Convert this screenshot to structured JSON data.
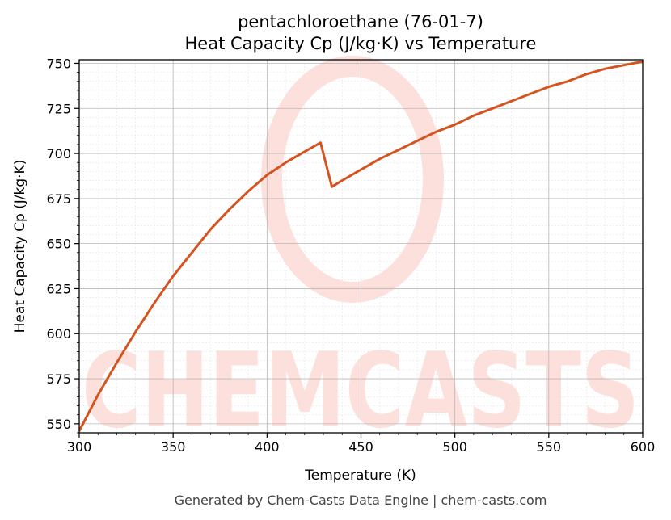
{
  "chart_data": {
    "type": "line",
    "title": "pentachloroethane (76-01-7)",
    "subtitle": "Heat Capacity Cp (J/kg·K) vs Temperature",
    "xlabel": "Temperature (K)",
    "ylabel": "Heat Capacity Cp (J/kg·K)",
    "xlim": [
      300,
      600
    ],
    "ylim": [
      545,
      752
    ],
    "xticks": [
      300,
      350,
      400,
      450,
      500,
      550,
      600
    ],
    "yticks": [
      550,
      575,
      600,
      625,
      650,
      675,
      700,
      725,
      750
    ],
    "grid": true,
    "legend": "none",
    "series": [
      {
        "color": "#d4541f",
        "x": [
          300,
          310,
          320,
          330,
          340,
          350,
          360,
          370,
          380,
          390,
          400,
          410,
          420,
          428.5,
          434.5,
          440,
          450,
          460,
          470,
          480,
          490,
          500,
          510,
          520,
          530,
          540,
          550,
          560,
          570,
          580,
          590,
          600
        ],
        "y": [
          546,
          566,
          584,
          601,
          617,
          632,
          645,
          658,
          669,
          679,
          688,
          695,
          701,
          706,
          681.5,
          685,
          691,
          697,
          702,
          707,
          712,
          716,
          721,
          725,
          729,
          733,
          737,
          740,
          744,
          747,
          749,
          751
        ]
      }
    ]
  },
  "watermark": {
    "text": "CHEMCASTS",
    "color": "#fde0dc"
  },
  "footer": "Generated by Chem-Casts Data Engine | chem-casts.com"
}
